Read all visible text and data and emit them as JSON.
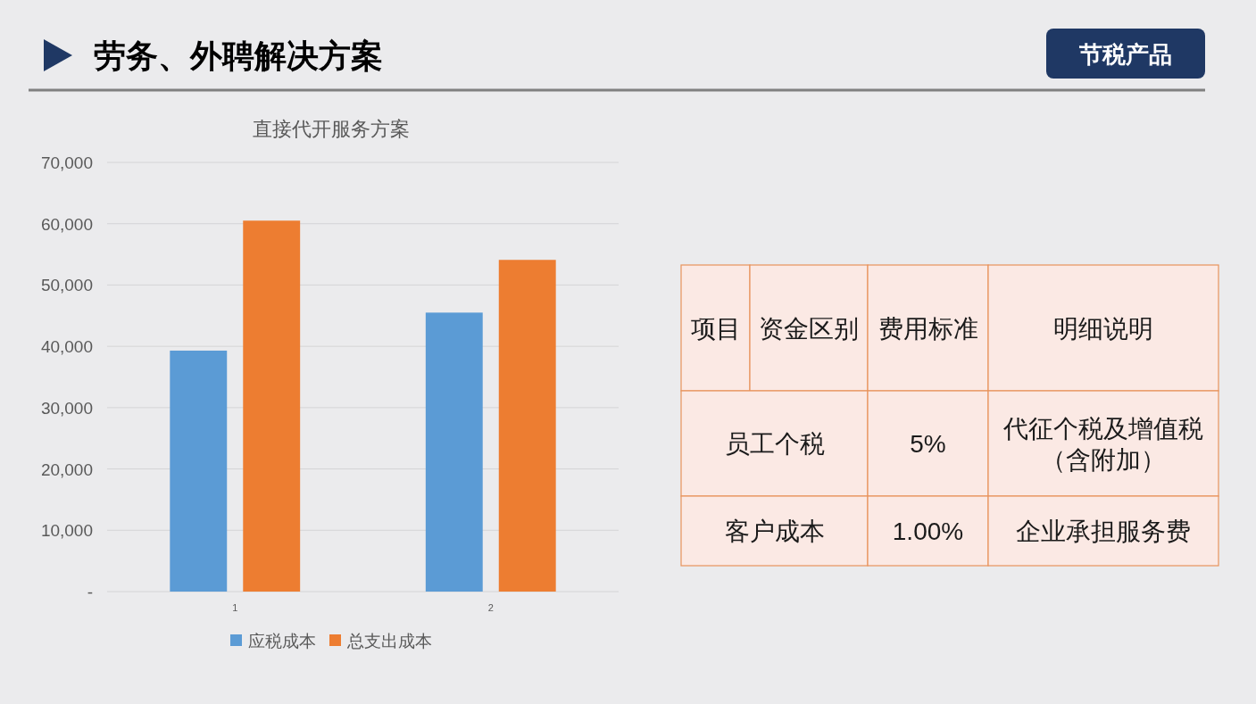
{
  "chart_data": [
    {
      "type": "other",
      "title": "劳务、外聘解决方案",
      "annotations": [
        "节税产品"
      ]
    },
    {
      "type": "bar",
      "title": "直接代开服务方案",
      "categories": [
        "1",
        "2"
      ],
      "series": [
        {
          "name": "应税成本",
          "color": "#5b9bd5",
          "values": [
            39300,
            45500
          ]
        },
        {
          "name": "总支出成本",
          "color": "#ed7d31",
          "values": [
            60500,
            54100
          ]
        }
      ],
      "ylim": [
        0,
        70000
      ],
      "yticks": [
        {
          "value": 0,
          "label": "-"
        },
        {
          "value": 10000,
          "label": "10,000"
        },
        {
          "value": 20000,
          "label": "20,000"
        },
        {
          "value": 30000,
          "label": "30,000"
        },
        {
          "value": 40000,
          "label": "40,000"
        },
        {
          "value": 50000,
          "label": "50,000"
        },
        {
          "value": 60000,
          "label": "60,000"
        },
        {
          "value": 70000,
          "label": "70,000"
        }
      ],
      "grid": "y",
      "legend": "bottom"
    },
    {
      "type": "other",
      "categories": [
        "项目",
        "资金区别",
        "费用标准",
        "明细说明"
      ],
      "cell_labels": [
        [
          "员工个税",
          "5%",
          "代征个税及增值税（含附加）"
        ],
        [
          "客户成本",
          "1.00%",
          "企业承担服务费"
        ]
      ]
    }
  ]
}
